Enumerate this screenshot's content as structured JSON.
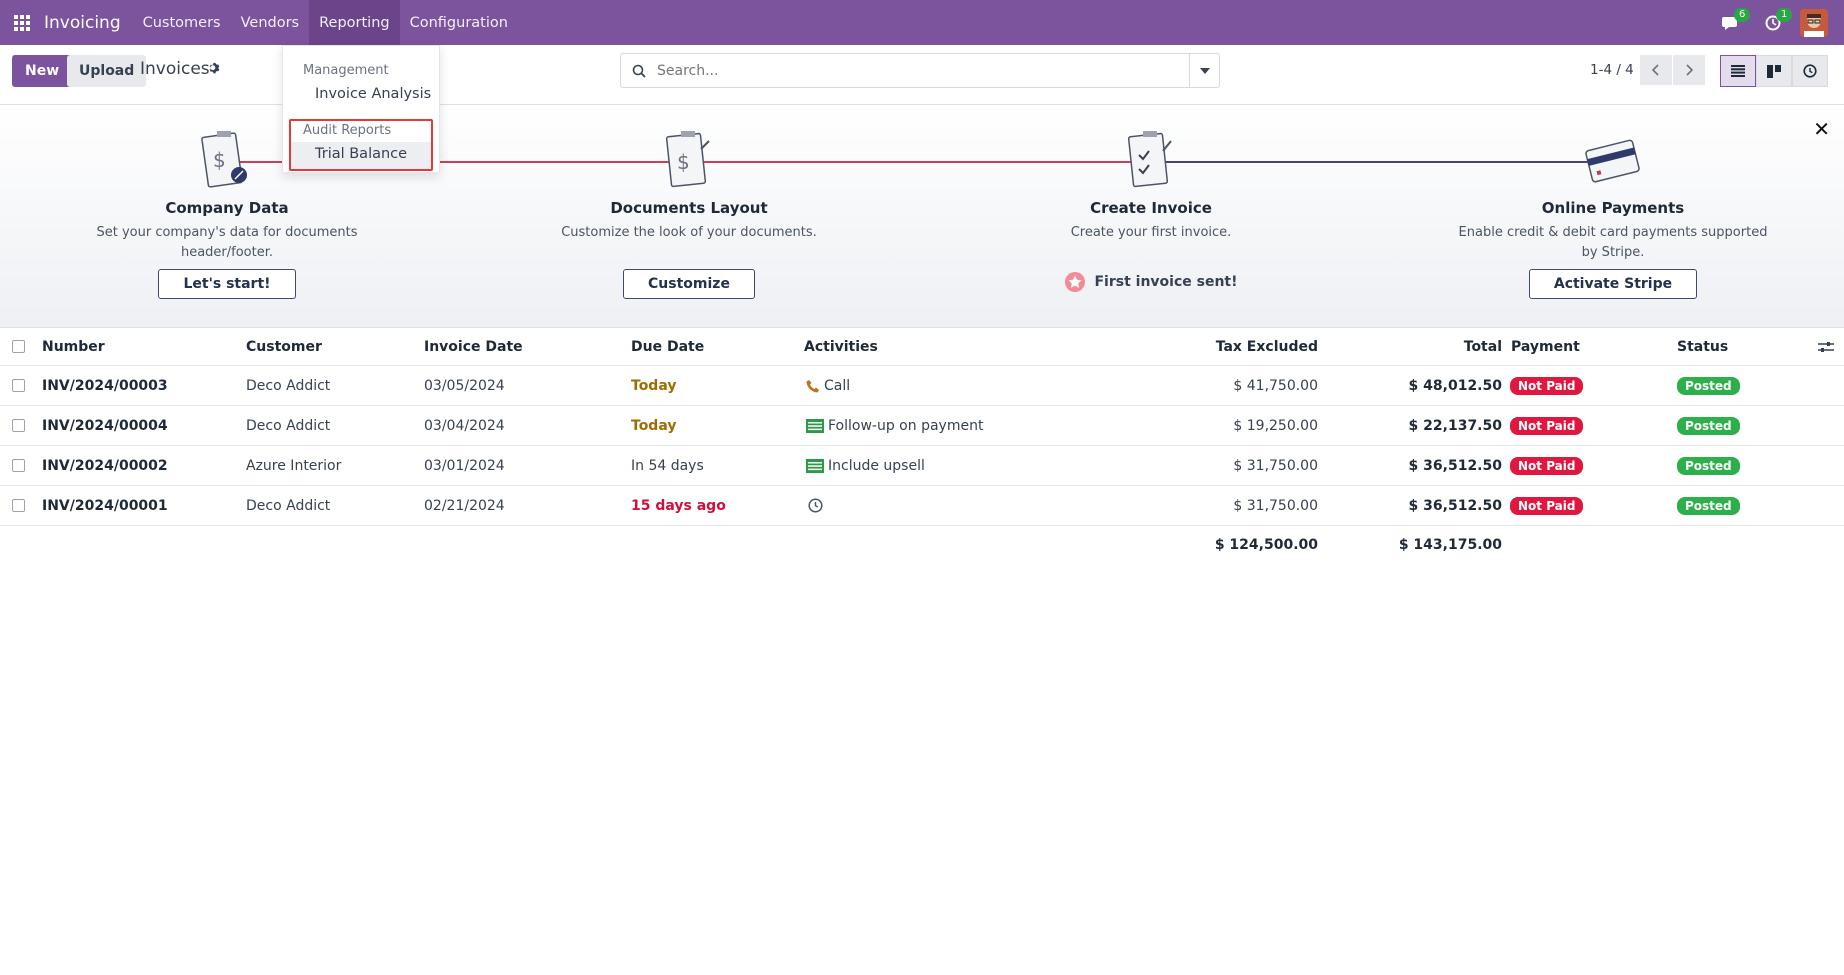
{
  "navbar": {
    "brand": "Invoicing",
    "menu": [
      "Customers",
      "Vendors",
      "Reporting",
      "Configuration"
    ],
    "messages_count": "6",
    "activities_count": "1",
    "colors": {
      "bg": "#7c539d"
    }
  },
  "control": {
    "new_label": "New",
    "upload_label": "Upload",
    "title": "Invoices",
    "search_placeholder": "Search...",
    "pager": "1-4 / 4"
  },
  "dropdown": {
    "section1": "Management",
    "item1": "Invoice Analysis",
    "section2": "Audit Reports",
    "item2": "Trial Balance"
  },
  "onboarding": {
    "steps": [
      {
        "title": "Company Data",
        "desc": "Set your company's data for documents header/footer.",
        "button": "Let's start!"
      },
      {
        "title": "Documents Layout",
        "desc": "Customize the look of your documents.",
        "button": "Customize"
      },
      {
        "title": "Create Invoice",
        "desc": "Create your first invoice.",
        "done": "First invoice sent!"
      },
      {
        "title": "Online Payments",
        "desc": "Enable credit & debit card payments supported by Stripe.",
        "button": "Activate Stripe"
      }
    ]
  },
  "table": {
    "headers": {
      "number": "Number",
      "customer": "Customer",
      "invoice_date": "Invoice Date",
      "due_date": "Due Date",
      "activities": "Activities",
      "tax_excluded": "Tax Excluded",
      "total": "Total",
      "payment": "Payment",
      "status": "Status"
    },
    "rows": [
      {
        "number": "INV/2024/00003",
        "customer": "Deco Addict",
        "invoice_date": "03/05/2024",
        "due_date": "Today",
        "activity": "Call",
        "tax_excluded": "$ 41,750.00",
        "total": "$ 48,012.50",
        "payment": "Not Paid",
        "status": "Posted"
      },
      {
        "number": "INV/2024/00004",
        "customer": "Deco Addict",
        "invoice_date": "03/04/2024",
        "due_date": "Today",
        "activity": "Follow-up on payment",
        "tax_excluded": "$ 19,250.00",
        "total": "$ 22,137.50",
        "payment": "Not Paid",
        "status": "Posted"
      },
      {
        "number": "INV/2024/00002",
        "customer": "Azure Interior",
        "invoice_date": "03/01/2024",
        "due_date": "In 54 days",
        "activity": "Include upsell",
        "tax_excluded": "$ 31,750.00",
        "total": "$ 36,512.50",
        "payment": "Not Paid",
        "status": "Posted"
      },
      {
        "number": "INV/2024/00001",
        "customer": "Deco Addict",
        "invoice_date": "02/21/2024",
        "due_date": "15 days ago",
        "activity": "",
        "tax_excluded": "$ 31,750.00",
        "total": "$ 36,512.50",
        "payment": "Not Paid",
        "status": "Posted"
      }
    ],
    "totals": {
      "tax_excluded": "$ 124,500.00",
      "total": "$ 143,175.00"
    }
  }
}
